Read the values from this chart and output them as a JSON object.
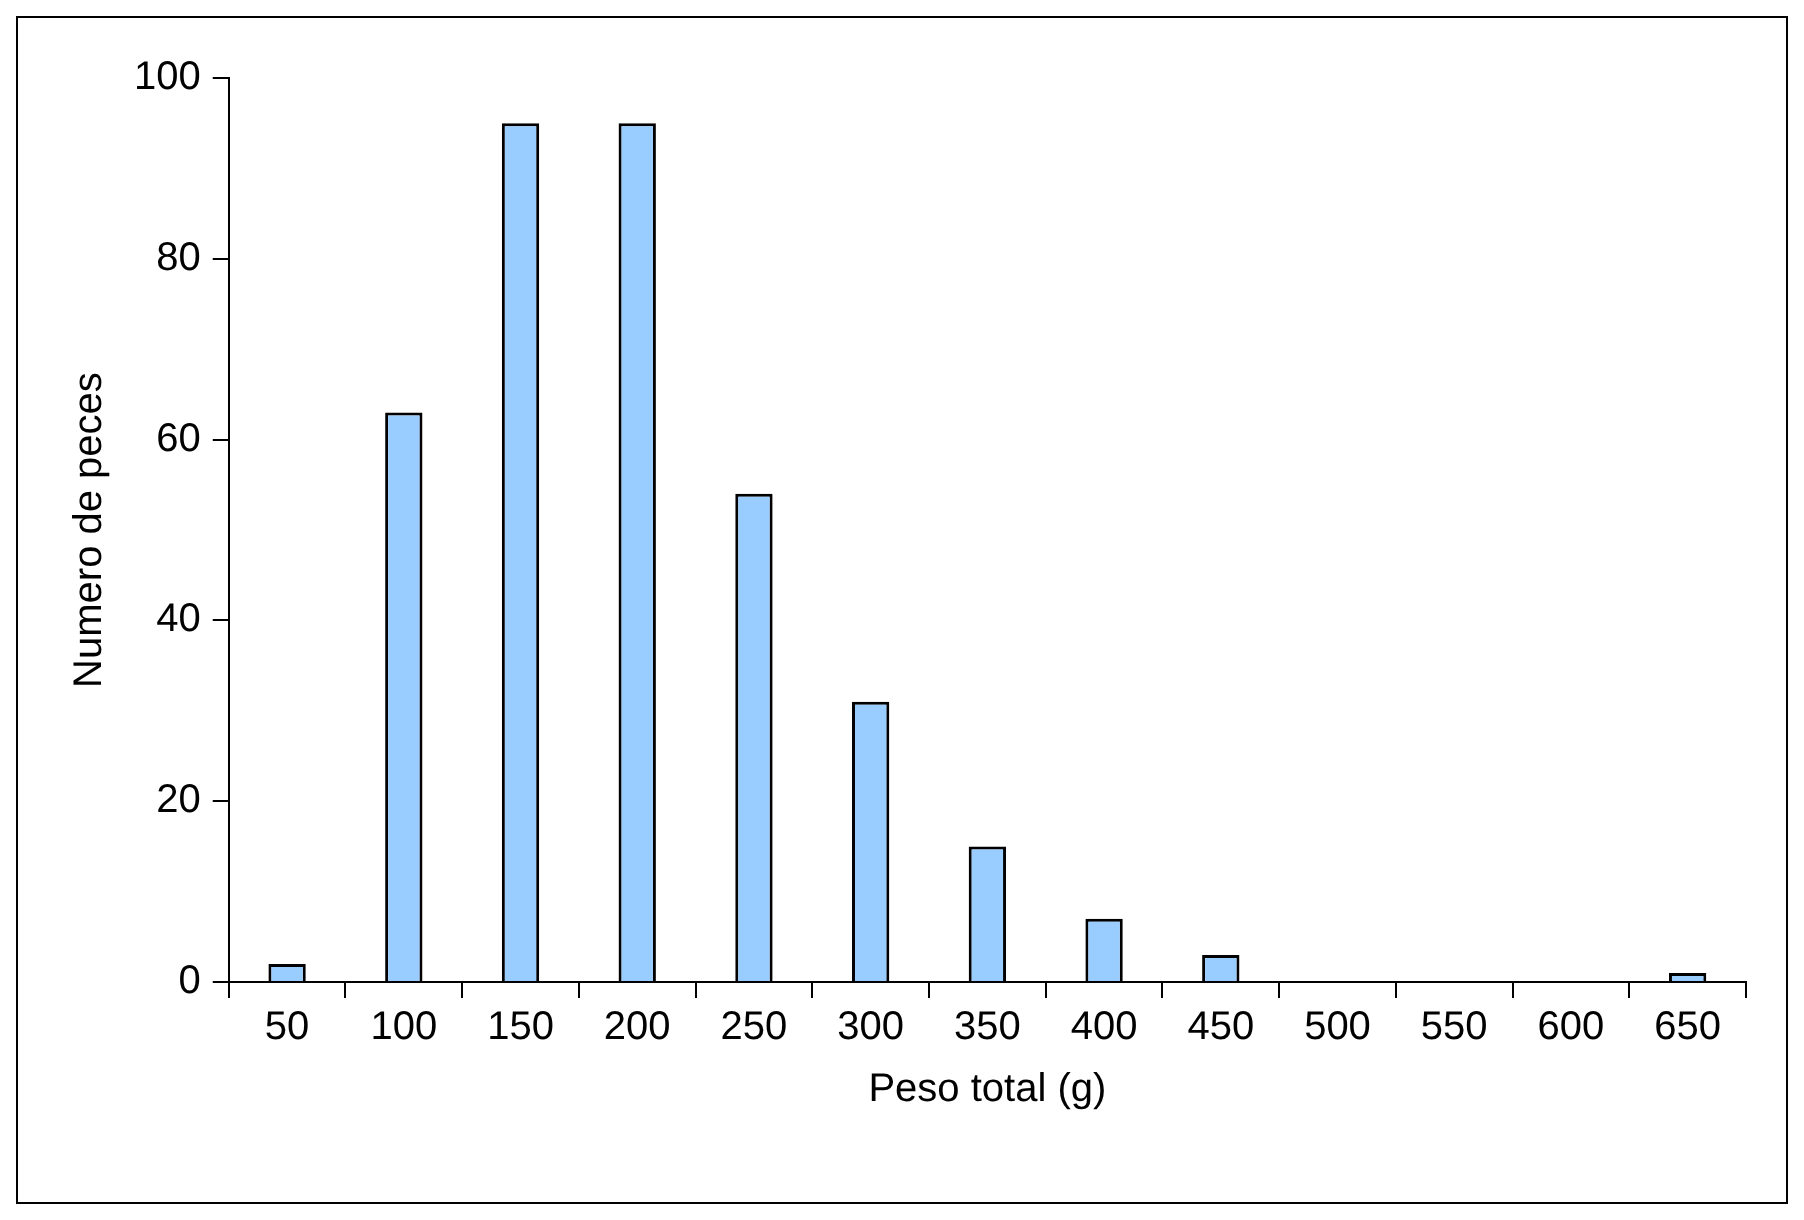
{
  "chart_data": {
    "type": "bar",
    "xlabel": "Peso total (g)",
    "ylabel": "Numero de peces",
    "categories": [
      "50",
      "100",
      "150",
      "200",
      "250",
      "300",
      "350",
      "400",
      "450",
      "500",
      "550",
      "600",
      "650"
    ],
    "values": [
      2,
      63,
      95,
      95,
      54,
      31,
      15,
      7,
      3,
      0,
      0,
      0,
      1
    ],
    "color": "#99ccff",
    "ylim": [
      0,
      100
    ],
    "yticks": [
      0,
      20,
      40,
      60,
      80,
      100
    ],
    "grid": false,
    "legend": false
  }
}
